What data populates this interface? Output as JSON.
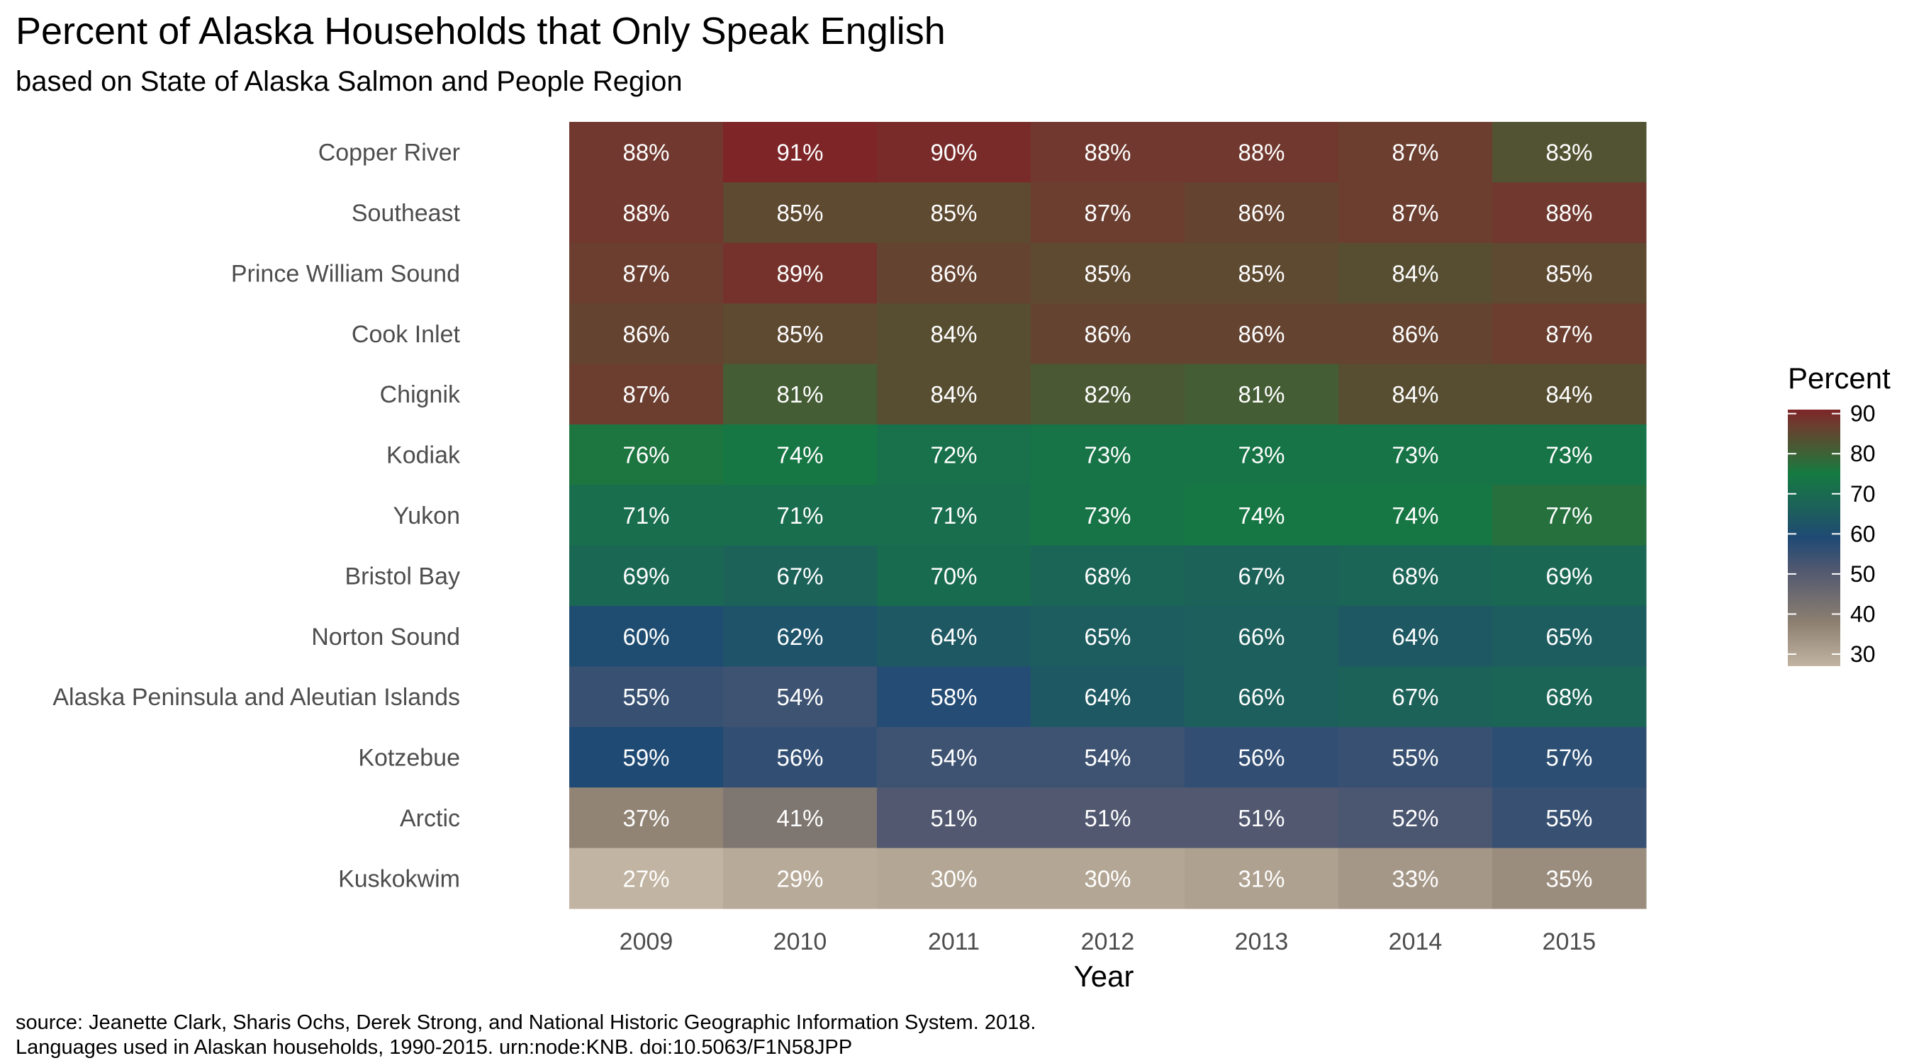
{
  "chart_data": {
    "type": "heatmap",
    "title": "Percent of Alaska Households that Only Speak English",
    "subtitle": "based on State of Alaska Salmon and People Region",
    "xlabel": "Year",
    "ylabel": "",
    "x": [
      "2009",
      "2010",
      "2011",
      "2012",
      "2013",
      "2014",
      "2015"
    ],
    "y": [
      "Copper River",
      "Southeast",
      "Prince William Sound",
      "Cook Inlet",
      "Chignik",
      "Kodiak",
      "Yukon",
      "Bristol Bay",
      "Norton Sound",
      "Alaska Peninsula and Aleutian Islands",
      "Kotzebue",
      "Arctic",
      "Kuskokwim"
    ],
    "values": [
      [
        88,
        91,
        90,
        88,
        88,
        87,
        83
      ],
      [
        88,
        85,
        85,
        87,
        86,
        87,
        88
      ],
      [
        87,
        89,
        86,
        85,
        85,
        84,
        85
      ],
      [
        86,
        85,
        84,
        86,
        86,
        86,
        87
      ],
      [
        87,
        81,
        84,
        82,
        81,
        84,
        84
      ],
      [
        76,
        74,
        72,
        73,
        73,
        73,
        73
      ],
      [
        71,
        71,
        71,
        73,
        74,
        74,
        77
      ],
      [
        69,
        67,
        70,
        68,
        67,
        68,
        69
      ],
      [
        60,
        62,
        64,
        65,
        66,
        64,
        65
      ],
      [
        55,
        54,
        58,
        64,
        66,
        67,
        68
      ],
      [
        59,
        56,
        54,
        54,
        56,
        55,
        57
      ],
      [
        37,
        41,
        51,
        51,
        51,
        52,
        55
      ],
      [
        27,
        29,
        30,
        30,
        31,
        33,
        35
      ]
    ],
    "value_suffix": "%",
    "legend": {
      "title": "Percent",
      "position": "right",
      "ticks": [
        30,
        40,
        50,
        60,
        70,
        80,
        90
      ],
      "range": [
        27,
        91
      ]
    },
    "colorscale": [
      {
        "v": 27,
        "color": "#c2b4a2"
      },
      {
        "v": 38,
        "color": "#8c7f70"
      },
      {
        "v": 51,
        "color": "#515870"
      },
      {
        "v": 59,
        "color": "#1f4a74"
      },
      {
        "v": 66,
        "color": "#1d5f5c"
      },
      {
        "v": 75,
        "color": "#157a41"
      },
      {
        "v": 80,
        "color": "#3d6236"
      },
      {
        "v": 84,
        "color": "#574e32"
      },
      {
        "v": 87,
        "color": "#6b3e30"
      },
      {
        "v": 91,
        "color": "#7e2528"
      }
    ],
    "grid": false
  },
  "caption": [
    "source: Jeanette Clark, Sharis Ochs, Derek Strong, and National Historic Geographic Information System. 2018.",
    "Languages used in Alaskan households, 1990-2015. urn:node:KNB. doi:10.5063/F1N58JPP"
  ]
}
